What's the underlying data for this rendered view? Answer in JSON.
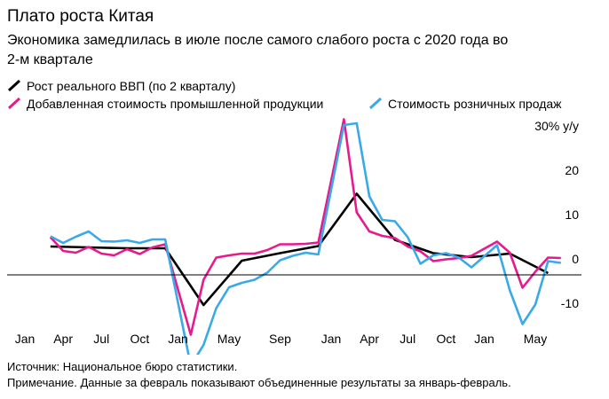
{
  "chart_data": {
    "type": "line",
    "title": "Плато роста Китая",
    "subtitle": [
      "Экономика замедлилась в июле после самого слабого роста с 2020 года во",
      "2-м квартале"
    ],
    "source": "Источник: Национальное бюро статистики.",
    "note": "Примечание. Данные за февраль показывают объединенные результаты за январь-февраль.",
    "xlim": [
      0,
      42
    ],
    "xticks": [
      {
        "value": 0,
        "label": "Jan"
      },
      {
        "value": 3,
        "label": "Apr"
      },
      {
        "value": 6,
        "label": "Jul"
      },
      {
        "value": 9,
        "label": "Oct"
      },
      {
        "value": 12,
        "label": "Jan"
      },
      {
        "value": 16,
        "label": "May"
      },
      {
        "value": 20,
        "label": "Sep"
      },
      {
        "value": 24,
        "label": "Jan"
      },
      {
        "value": 27,
        "label": "Apr"
      },
      {
        "value": 30,
        "label": "Jul"
      },
      {
        "value": 33,
        "label": "Oct"
      },
      {
        "value": 36,
        "label": "Jan"
      },
      {
        "value": 40,
        "label": "May"
      }
    ],
    "ylim": [
      -14,
      36
    ],
    "yticks": [
      {
        "value": 30,
        "label": "30% y/y"
      },
      20,
      10,
      0,
      -10
    ],
    "series": [
      {
        "name": "Рост реального ВВП (по 2 кварталу)",
        "color": "#000000",
        "x": [
          2,
          5,
          8,
          11,
          14,
          17,
          20,
          23,
          26,
          29,
          32,
          35,
          38,
          41
        ],
        "values": [
          6.4,
          6.2,
          6.0,
          6.0,
          -6.8,
          3.2,
          4.9,
          6.5,
          18.3,
          7.9,
          4.9,
          4.0,
          4.8,
          0.4
        ]
      },
      {
        "name": "Добавленная стоимость промышленной продукции",
        "color": "#e8198b",
        "x": [
          2,
          3,
          4,
          5,
          6,
          7,
          8,
          9,
          10,
          11,
          13,
          14,
          15,
          16,
          17,
          18,
          19,
          20,
          21,
          22,
          23,
          25,
          26,
          27,
          28,
          29,
          30,
          31,
          32,
          33,
          34,
          35,
          37,
          38,
          39,
          40,
          41,
          42
        ],
        "values": [
          8.5,
          5.4,
          5.0,
          6.3,
          4.8,
          4.4,
          5.8,
          4.7,
          6.2,
          6.9,
          -13.5,
          -1.1,
          3.9,
          4.4,
          4.8,
          4.8,
          5.6,
          6.9,
          6.9,
          7.0,
          7.3,
          35.1,
          14.1,
          9.8,
          8.8,
          8.3,
          6.4,
          5.3,
          3.1,
          3.5,
          3.8,
          4.3,
          7.5,
          5.0,
          -2.9,
          0.7,
          3.9,
          3.8
        ]
      },
      {
        "name": "Стоимость розничных продаж",
        "color": "#3aa9e8",
        "x": [
          2,
          3,
          4,
          5,
          6,
          7,
          8,
          9,
          10,
          11,
          13,
          14,
          15,
          16,
          17,
          18,
          19,
          20,
          21,
          22,
          23,
          25,
          26,
          27,
          28,
          29,
          30,
          31,
          32,
          33,
          34,
          35,
          37,
          38,
          39,
          40,
          41,
          42
        ],
        "values": [
          8.7,
          7.2,
          8.6,
          9.8,
          7.6,
          7.5,
          7.8,
          7.2,
          8.0,
          8.0,
          -20.5,
          -15.8,
          -7.5,
          -2.8,
          -1.8,
          -1.1,
          0.5,
          3.3,
          4.3,
          5.0,
          4.6,
          33.8,
          34.2,
          17.7,
          12.4,
          12.1,
          8.5,
          2.5,
          4.4,
          4.9,
          3.9,
          1.7,
          6.7,
          -3.5,
          -11.1,
          -6.7,
          3.1,
          2.7
        ]
      }
    ]
  }
}
